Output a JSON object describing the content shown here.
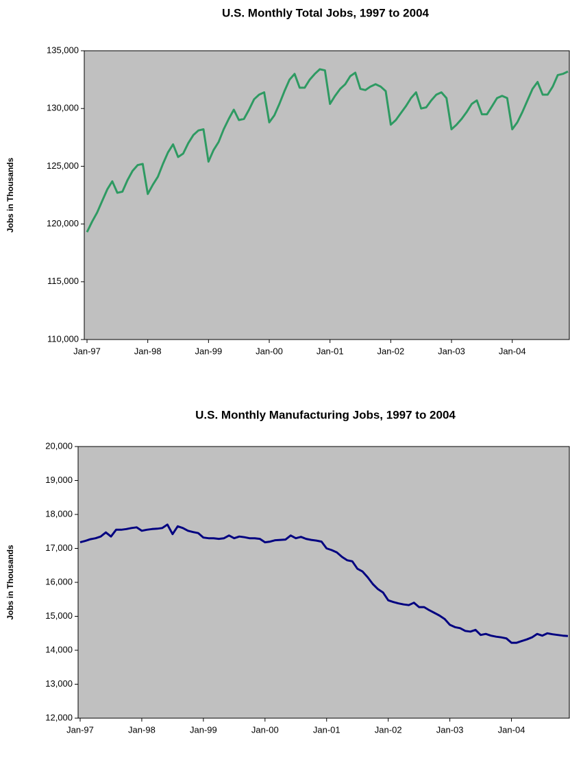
{
  "chart_data": [
    {
      "type": "line",
      "title": "U.S. Monthly Total Jobs, 1997 to 2004",
      "y_label": "Jobs in Thousands",
      "color": "#2e9a62",
      "grid": false,
      "categories": [
        "Jan-97",
        null,
        null,
        null,
        null,
        null,
        null,
        null,
        null,
        null,
        null,
        null,
        "Jan-98",
        null,
        null,
        null,
        null,
        null,
        null,
        null,
        null,
        null,
        null,
        null,
        "Jan-99",
        null,
        null,
        null,
        null,
        null,
        null,
        null,
        null,
        null,
        null,
        null,
        "Jan-00",
        null,
        null,
        null,
        null,
        null,
        null,
        null,
        null,
        null,
        null,
        null,
        "Jan-01",
        null,
        null,
        null,
        null,
        null,
        null,
        null,
        null,
        null,
        null,
        null,
        "Jan-02",
        null,
        null,
        null,
        null,
        null,
        null,
        null,
        null,
        null,
        null,
        null,
        "Jan-03",
        null,
        null,
        null,
        null,
        null,
        null,
        null,
        null,
        null,
        null,
        null,
        "Jan-04",
        null,
        null,
        null,
        null,
        null,
        null,
        null,
        null,
        null,
        null,
        null
      ],
      "values": [
        119300,
        120200,
        121000,
        122000,
        123000,
        123700,
        122700,
        122800,
        123800,
        124600,
        125100,
        125200,
        122600,
        123400,
        124100,
        125200,
        126200,
        126900,
        125800,
        126100,
        127000,
        127700,
        128100,
        128200,
        125400,
        126400,
        127100,
        128200,
        129100,
        129900,
        129000,
        129100,
        129900,
        130800,
        131200,
        131400,
        128800,
        129400,
        130400,
        131500,
        132500,
        133000,
        131800,
        131800,
        132500,
        133000,
        133400,
        133300,
        130400,
        131100,
        131700,
        132100,
        132800,
        133100,
        131700,
        131600,
        131900,
        132100,
        131900,
        131500,
        128600,
        129000,
        129600,
        130200,
        130900,
        131400,
        130000,
        130100,
        130700,
        131200,
        131400,
        130900,
        128200,
        128600,
        129100,
        129700,
        130400,
        130700,
        129500,
        129500,
        130200,
        130900,
        131100,
        130900,
        128200,
        128800,
        129700,
        130700,
        131700,
        132300,
        131200,
        131200,
        131900,
        132900,
        133000,
        133200
      ],
      "ylim": [
        110000,
        135000
      ],
      "yticks": [
        {
          "value": 110000,
          "label": "110,000"
        },
        {
          "value": 115000,
          "label": "115,000"
        },
        {
          "value": 120000,
          "label": "120,000"
        },
        {
          "value": 125000,
          "label": "125,000"
        },
        {
          "value": 130000,
          "label": "130,000"
        },
        {
          "value": 135000,
          "label": "135,000"
        }
      ]
    },
    {
      "type": "line",
      "title": "U.S. Monthly Manufacturing Jobs, 1997 to 2004",
      "y_label": "Jobs in Thousands",
      "color": "#000080",
      "grid": false,
      "categories": [
        "Jan-97",
        null,
        null,
        null,
        null,
        null,
        null,
        null,
        null,
        null,
        null,
        null,
        "Jan-98",
        null,
        null,
        null,
        null,
        null,
        null,
        null,
        null,
        null,
        null,
        null,
        "Jan-99",
        null,
        null,
        null,
        null,
        null,
        null,
        null,
        null,
        null,
        null,
        null,
        "Jan-00",
        null,
        null,
        null,
        null,
        null,
        null,
        null,
        null,
        null,
        null,
        null,
        "Jan-01",
        null,
        null,
        null,
        null,
        null,
        null,
        null,
        null,
        null,
        null,
        null,
        "Jan-02",
        null,
        null,
        null,
        null,
        null,
        null,
        null,
        null,
        null,
        null,
        null,
        "Jan-03",
        null,
        null,
        null,
        null,
        null,
        null,
        null,
        null,
        null,
        null,
        null,
        "Jan-04",
        null,
        null,
        null,
        null,
        null,
        null,
        null,
        null,
        null,
        null,
        null
      ],
      "values": [
        17180,
        17220,
        17270,
        17300,
        17350,
        17470,
        17350,
        17550,
        17550,
        17570,
        17600,
        17620,
        17520,
        17550,
        17570,
        17580,
        17600,
        17700,
        17420,
        17650,
        17600,
        17520,
        17480,
        17450,
        17320,
        17300,
        17300,
        17280,
        17300,
        17380,
        17300,
        17350,
        17330,
        17300,
        17300,
        17280,
        17180,
        17200,
        17240,
        17250,
        17260,
        17380,
        17300,
        17340,
        17280,
        17250,
        17230,
        17200,
        17000,
        16950,
        16880,
        16750,
        16650,
        16620,
        16400,
        16320,
        16150,
        15950,
        15800,
        15700,
        15470,
        15420,
        15380,
        15350,
        15330,
        15400,
        15270,
        15270,
        15180,
        15100,
        15020,
        14920,
        14750,
        14680,
        14650,
        14570,
        14550,
        14600,
        14450,
        14480,
        14430,
        14400,
        14380,
        14350,
        14220,
        14220,
        14270,
        14320,
        14380,
        14480,
        14430,
        14500,
        14470,
        14450,
        14430,
        14420
      ],
      "ylim": [
        12000,
        20000
      ],
      "yticks": [
        {
          "value": 12000,
          "label": "12,000"
        },
        {
          "value": 13000,
          "label": "13,000"
        },
        {
          "value": 14000,
          "label": "14,000"
        },
        {
          "value": 15000,
          "label": "15,000"
        },
        {
          "value": 16000,
          "label": "16,000"
        },
        {
          "value": 17000,
          "label": "17,000"
        },
        {
          "value": 18000,
          "label": "18,000"
        },
        {
          "value": 19000,
          "label": "19,000"
        },
        {
          "value": 20000,
          "label": "20,000"
        }
      ]
    }
  ]
}
